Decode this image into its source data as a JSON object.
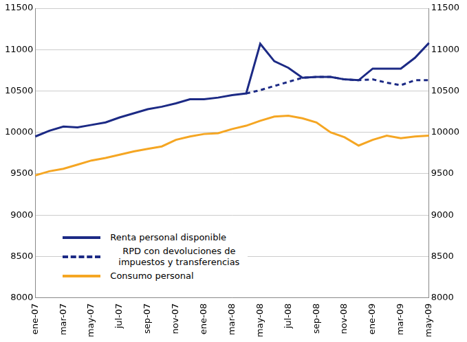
{
  "chart_data": {
    "type": "line",
    "categories": [
      "ene-07",
      null,
      "mar-07",
      null,
      "may-07",
      null,
      "jul-07",
      null,
      "sep-07",
      null,
      "nov-07",
      null,
      "ene-08",
      null,
      "mar-08",
      null,
      "may-08",
      null,
      "jul-08",
      null,
      "sep-08",
      null,
      "nov-08",
      null,
      "ene-09",
      null,
      "mar-09",
      null,
      "may-09"
    ],
    "series": [
      {
        "name": "Renta personal disponible",
        "color": "#1c2a85",
        "line_style": "solid",
        "values": [
          9950,
          10020,
          10070,
          10060,
          10090,
          10120,
          10180,
          10230,
          10280,
          10310,
          10350,
          10400,
          10400,
          10420,
          10450,
          10470,
          11070,
          10860,
          10780,
          10660,
          10670,
          10670,
          10640,
          10630,
          10770,
          10770,
          10770,
          10900,
          11080
        ]
      },
      {
        "name": "RPD con devoluciones de impuestos y transferencias",
        "color": "#1c2a85",
        "line_style": "dashed",
        "values": [
          null,
          null,
          null,
          null,
          null,
          null,
          null,
          null,
          null,
          null,
          null,
          null,
          null,
          null,
          null,
          10470,
          10510,
          10560,
          10610,
          10660,
          10670,
          10670,
          10640,
          10630,
          10640,
          10600,
          10570,
          10630,
          10630
        ]
      },
      {
        "name": "Consumo personal",
        "color": "#f5a623",
        "line_style": "solid",
        "values": [
          9480,
          9530,
          9560,
          9610,
          9660,
          9690,
          9730,
          9770,
          9800,
          9830,
          9910,
          9950,
          9980,
          9990,
          10040,
          10080,
          10140,
          10190,
          10200,
          10170,
          10120,
          10000,
          9940,
          9840,
          9910,
          9960,
          9930,
          9950,
          9960
        ]
      }
    ],
    "ylim": [
      8000,
      11500
    ],
    "yticks": [
      8000,
      8500,
      9000,
      9500,
      10000,
      10500,
      11000,
      11500
    ],
    "y2lim": [
      8000,
      11500
    ],
    "y2ticks": [
      8000,
      8500,
      9000,
      9500,
      10000,
      10500,
      11000,
      11500
    ],
    "grid": true,
    "legend": "lower left"
  }
}
